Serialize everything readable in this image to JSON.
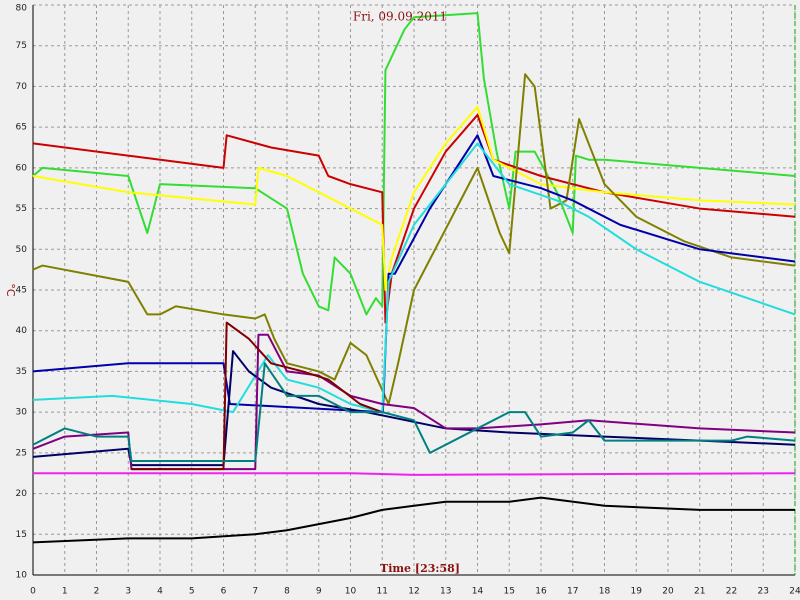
{
  "chart_data": {
    "type": "line",
    "title": "Fri, 09.09.2011",
    "x_label": "Time [23:58]",
    "y_label": "°C",
    "xlim": [
      0,
      24
    ],
    "ylim": [
      10,
      80
    ],
    "xticks": [
      0,
      1,
      2,
      3,
      4,
      5,
      6,
      7,
      8,
      9,
      10,
      11,
      12,
      13,
      14,
      15,
      16,
      17,
      18,
      19,
      20,
      21,
      22,
      23,
      24
    ],
    "yticks": [
      10,
      15,
      20,
      25,
      30,
      35,
      40,
      45,
      50,
      55,
      60,
      65,
      70,
      75,
      80
    ],
    "grid": true,
    "series": [
      {
        "color": "#33dd33",
        "x": [
          0,
          0.3,
          3,
          3.6,
          4,
          7,
          8,
          8.5,
          9,
          9.3,
          9.5,
          10,
          10.5,
          10.8,
          11,
          11.1,
          11.7,
          12,
          14,
          14.2,
          14.6,
          15,
          15.2,
          15.8,
          16.5,
          17,
          17.1,
          17.5,
          18,
          21,
          24
        ],
        "values": [
          59,
          60,
          59,
          52,
          58,
          57.5,
          55,
          47,
          43,
          42.5,
          49,
          47,
          42,
          44,
          43,
          72,
          77,
          78.5,
          79,
          71,
          62,
          55,
          62,
          62,
          57,
          52,
          61.5,
          61,
          61,
          60,
          59
        ]
      },
      {
        "color": "#cc0000",
        "x": [
          0,
          3,
          6,
          6.1,
          7.5,
          9,
          9.3,
          10,
          11,
          11.1,
          11.3,
          12,
          13,
          14,
          14.5,
          16,
          18,
          21,
          24
        ],
        "values": [
          63,
          61.5,
          60,
          64,
          62.5,
          61.5,
          59,
          58,
          57,
          41,
          47,
          55,
          62,
          66.5,
          61,
          59,
          57,
          55,
          54
        ]
      },
      {
        "color": "#ffff00",
        "x": [
          0,
          3,
          7,
          7.1,
          8,
          9,
          10,
          11,
          11.1,
          11.3,
          12,
          13,
          14,
          14.5,
          16,
          18,
          21,
          24
        ],
        "values": [
          59,
          57,
          55.5,
          60,
          59,
          57,
          55,
          53,
          45,
          49,
          57,
          63,
          67.5,
          61,
          58,
          57,
          56,
          55.5
        ]
      },
      {
        "color": "#808000",
        "x": [
          0,
          0.3,
          3,
          3.6,
          4,
          4.5,
          6,
          7,
          7.3,
          7.6,
          8,
          9,
          9.5,
          10,
          10.5,
          11.2,
          11.5,
          12,
          14,
          14.7,
          15,
          15.5,
          15.8,
          16.3,
          16.8,
          17.2,
          17.6,
          18,
          19,
          20.5,
          22,
          24
        ],
        "values": [
          47.5,
          48,
          46,
          42,
          42,
          43,
          42,
          41.5,
          42,
          39,
          36,
          35,
          34,
          38.5,
          37,
          31,
          36,
          45,
          60,
          52,
          49.5,
          71.5,
          70,
          55,
          56,
          66,
          62,
          58,
          54,
          51,
          49,
          48
        ]
      },
      {
        "color": "#0000aa",
        "x": [
          0,
          3,
          6,
          6.2,
          11,
          11.02,
          11.2,
          11.4,
          12.5,
          14,
          14.5,
          16,
          17,
          18.5,
          21,
          24
        ],
        "values": [
          35,
          36,
          36,
          31,
          30,
          30,
          47,
          47,
          55,
          64,
          59,
          57.5,
          56,
          53,
          50,
          48.5
        ]
      },
      {
        "color": "#22dddd",
        "x": [
          0,
          2.5,
          5,
          6.3,
          7.4,
          8,
          9,
          10,
          11,
          11.2,
          12,
          14,
          15,
          16.5,
          17.5,
          19,
          21,
          24
        ],
        "values": [
          31.5,
          32,
          31,
          30,
          37,
          34,
          33,
          31,
          30,
          46,
          53,
          63,
          58,
          56,
          54,
          50,
          46,
          42
        ]
      },
      {
        "color": "#000066",
        "x": [
          0,
          3,
          3.1,
          6,
          6.3,
          6.8,
          7.5,
          9,
          10.5,
          13,
          15,
          18,
          21,
          24
        ],
        "values": [
          24.5,
          25.5,
          23.5,
          23.5,
          37.5,
          35,
          33,
          31,
          30,
          28,
          27.5,
          27,
          26.5,
          26
        ]
      },
      {
        "color": "#800080",
        "x": [
          0,
          1,
          3,
          3.1,
          7,
          7.1,
          7.4,
          8,
          9,
          10,
          11,
          12,
          13,
          14,
          16,
          17.5,
          21,
          24
        ],
        "values": [
          25.5,
          27,
          27.5,
          23,
          23,
          39.5,
          39.5,
          35,
          34.5,
          32,
          31,
          30.5,
          28,
          28,
          28.5,
          29,
          28,
          27.5
        ]
      },
      {
        "color": "#800000",
        "x": [
          3.1,
          6,
          6.1,
          6.8,
          7.5,
          8.5,
          9.3,
          10.3,
          11
        ],
        "values": [
          23,
          23,
          41,
          39,
          36,
          35,
          34,
          31,
          30
        ]
      },
      {
        "color": "#008080",
        "x": [
          0,
          1,
          2,
          3,
          3.1,
          7,
          7.3,
          8,
          9,
          10,
          11,
          12,
          12.5,
          13.5,
          15,
          15.5,
          16,
          17,
          17.5,
          18,
          22,
          22.5,
          24
        ],
        "values": [
          26,
          28,
          27,
          27,
          24,
          24,
          36,
          32,
          32,
          30,
          30,
          29,
          25,
          27,
          30,
          30,
          27,
          27.5,
          29,
          26.5,
          26.5,
          27,
          26.5
        ]
      },
      {
        "color": "#ee22ee",
        "x": [
          0,
          5,
          10,
          12,
          24
        ],
        "values": [
          22.5,
          22.5,
          22.5,
          22.3,
          22.5
        ]
      },
      {
        "color": "#000000",
        "x": [
          0,
          3,
          5,
          7,
          8,
          10,
          11,
          12,
          13,
          15,
          16,
          18,
          21,
          24
        ],
        "values": [
          14,
          14.5,
          14.5,
          15,
          15.5,
          17,
          18,
          18.5,
          19,
          19,
          19.5,
          18.5,
          18,
          18
        ]
      }
    ]
  }
}
